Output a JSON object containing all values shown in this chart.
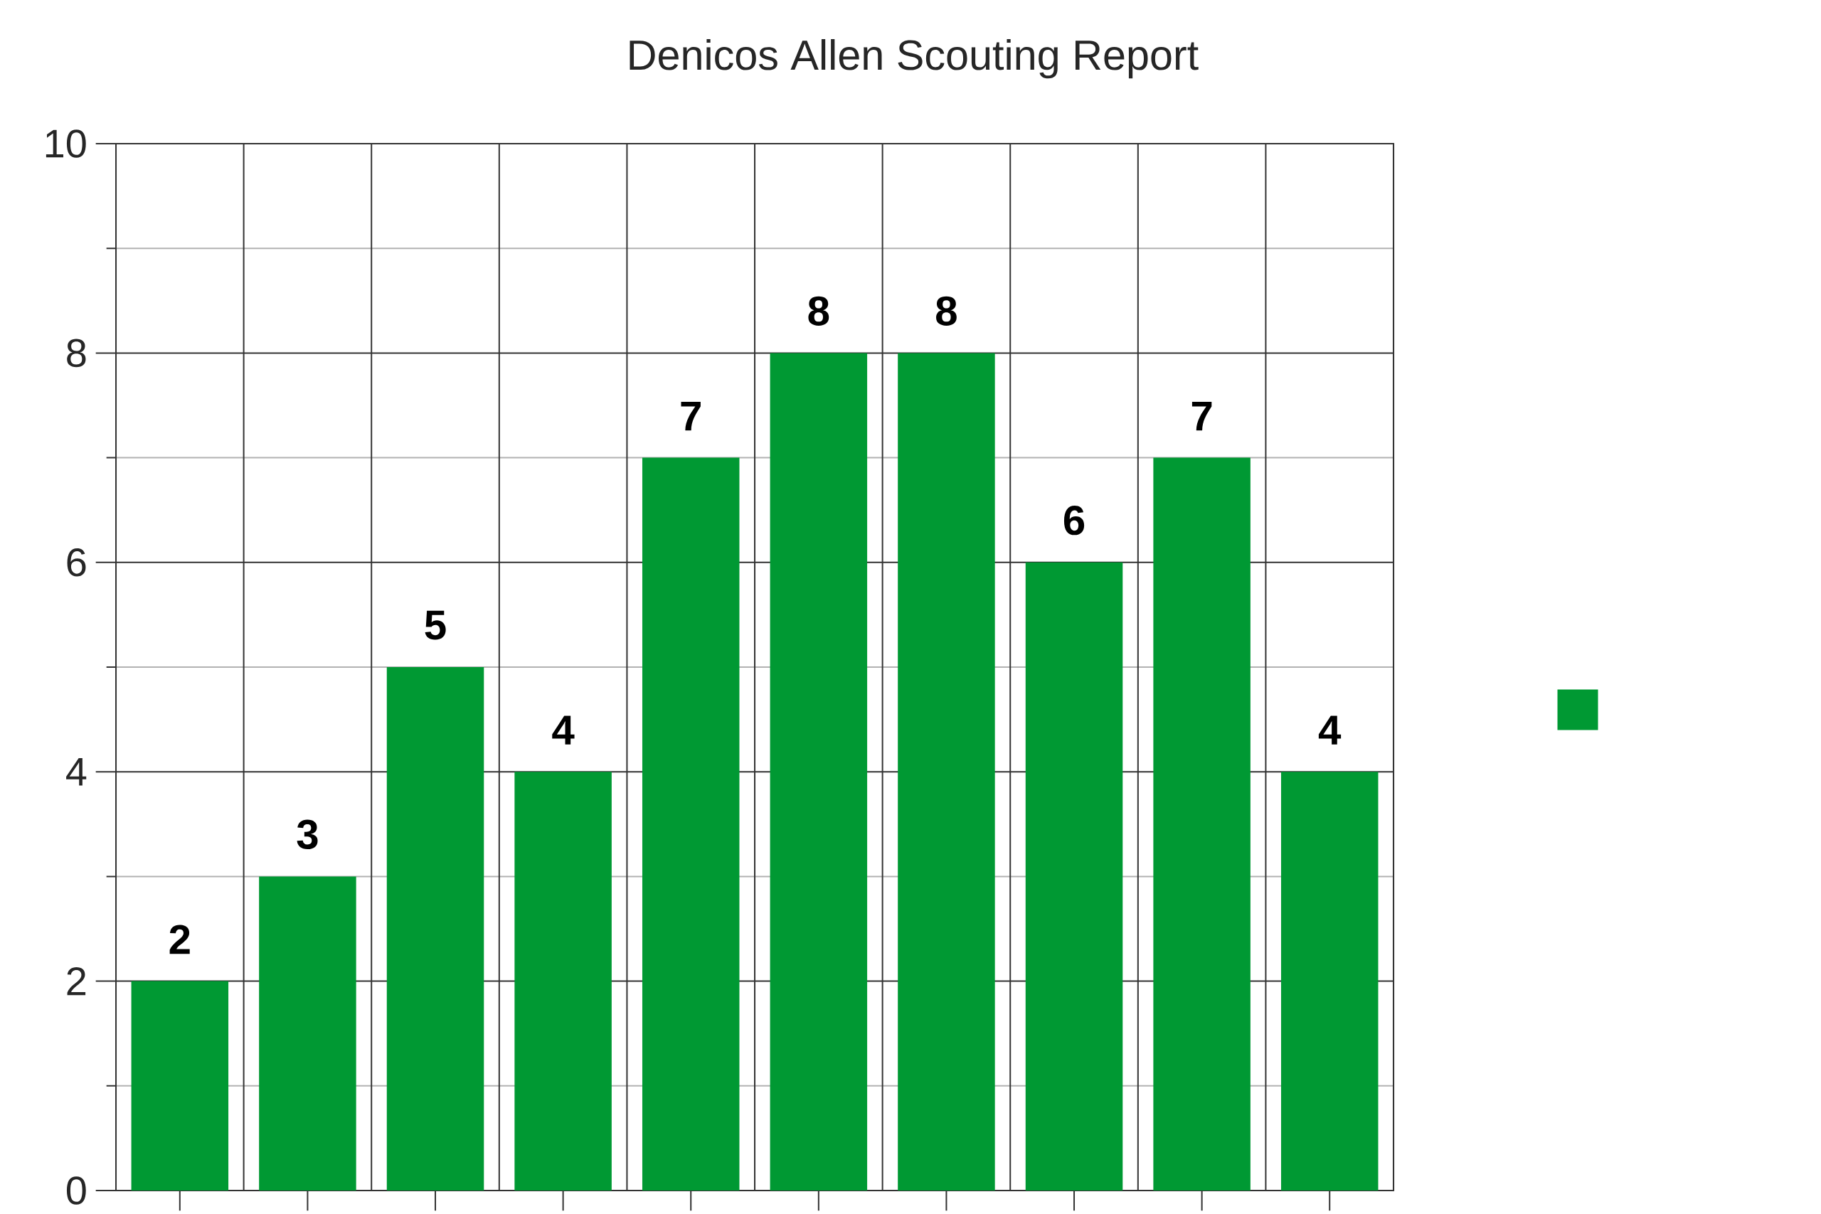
{
  "chart_data": {
    "type": "bar",
    "title": "Denicos Allen Scouting Report",
    "categories": [
      null,
      null,
      null,
      null,
      null,
      null,
      null,
      null,
      null,
      null
    ],
    "values": [
      2,
      3,
      5,
      4,
      7,
      8,
      8,
      6,
      7,
      4
    ],
    "color": "#009933",
    "ylim": [
      0,
      10
    ],
    "yticks": [
      0,
      {
        "value": 1,
        "label": null
      },
      2,
      {
        "value": 3,
        "label": null
      },
      4,
      {
        "value": 5,
        "label": null
      },
      6,
      {
        "value": 7,
        "label": null
      },
      8,
      {
        "value": 9,
        "label": null
      },
      10
    ],
    "grid": true,
    "data_labels": true
  }
}
